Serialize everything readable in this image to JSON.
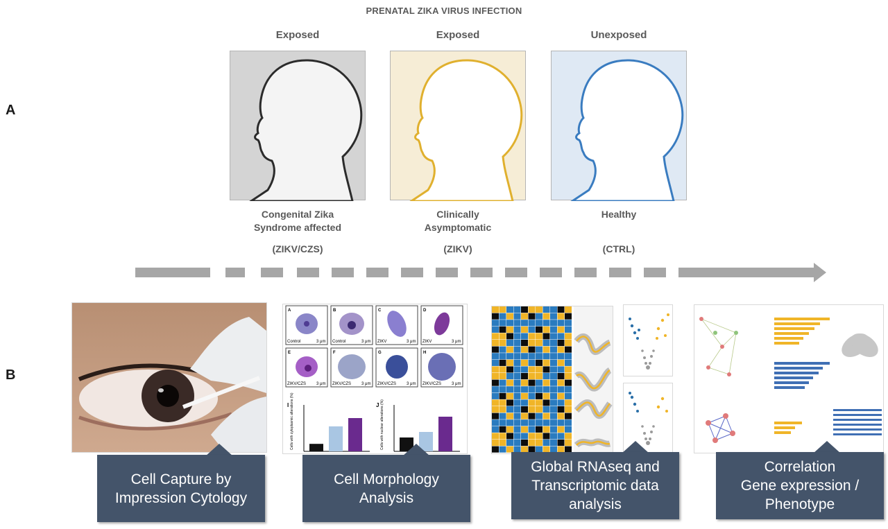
{
  "title": "PRENATAL ZIKA VIRUS INFECTION",
  "panels": {
    "a": "A",
    "b": "B"
  },
  "groups": [
    {
      "exposure": "Exposed",
      "desc1": "Congenital Zika",
      "desc2": "Syndrome affected",
      "code": "(ZIKV/CZS)",
      "bg": "#d4d4d4",
      "outline": "#2b2b2b"
    },
    {
      "exposure": "Exposed",
      "desc1": "Clinically",
      "desc2": "Asymptomatic",
      "code": "(ZIKV)",
      "bg": "#f6edd6",
      "outline": "#e0b02e"
    },
    {
      "exposure": "Unexposed",
      "desc1": "",
      "desc2": "Healthy",
      "code": "(CTRL)",
      "bg": "#dfe9f4",
      "outline": "#3a7cc0"
    }
  ],
  "steps": [
    {
      "line1": "Cell Capture by",
      "line2": "Impression Cytology"
    },
    {
      "line1": "Cell Morphology",
      "line2": "Analysis"
    },
    {
      "line1": "Global RNAseq and",
      "line2": "Transcriptomic data",
      "line3": "analysis"
    },
    {
      "line1": "Correlation",
      "line2": "Gene expression /",
      "line3": "Phenotype"
    }
  ],
  "morphology": {
    "cells": [
      {
        "letter": "A",
        "label": "Control"
      },
      {
        "letter": "B",
        "label": "Control"
      },
      {
        "letter": "C",
        "label": "ZIKV"
      },
      {
        "letter": "D",
        "label": "ZIKV"
      },
      {
        "letter": "E",
        "label": "ZIKV/CZS"
      },
      {
        "letter": "F",
        "label": "ZIKV/CZS"
      },
      {
        "letter": "G",
        "label": "ZIKV/CZS"
      },
      {
        "letter": "H",
        "label": "ZIKV/CZS"
      }
    ],
    "scale": "3 μm",
    "chart_i": {
      "letter": "I",
      "ylabel": "Cells with cytoplasmic alterations (%)",
      "values": [
        18,
        60,
        80
      ]
    },
    "chart_j": {
      "letter": "J",
      "ylabel": "Cells with nuclear alterations (%)",
      "values": [
        10,
        14,
        25
      ]
    },
    "bar_colors": [
      "#111111",
      "#a9c6e3",
      "#6a2a8e"
    ]
  },
  "colors": {
    "step_box": "#44546a",
    "arrow": "#a6a6a6"
  }
}
